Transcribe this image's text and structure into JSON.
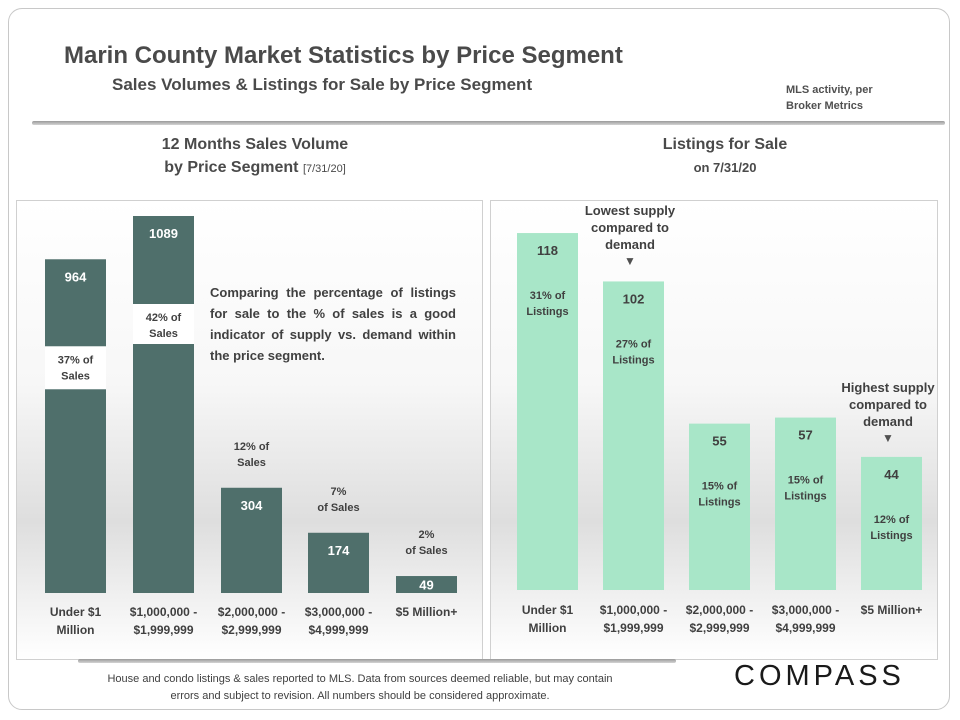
{
  "page": {
    "title": "Marin County Market Statistics by Price Segment",
    "subtitle": "Sales Volumes & Listings for Sale by Price Segment",
    "source": "MLS activity, per Broker Metrics",
    "footer": "House and condo listings & sales reported to MLS. Data from sources deemed reliable, but may contain errors and subject to revision. All numbers should be considered approximate.",
    "logo": "COMPASS"
  },
  "sales_header": {
    "line1": "12 Months Sales Volume",
    "line2": "by Price Segment",
    "date": "[7/31/20]"
  },
  "listings_header": {
    "line1": "Listings for Sale",
    "line2": "on 7/31/20"
  },
  "annotations": {
    "note": "Comparing the percentage of listings for sale to the % of sales is a good indicator of supply vs. demand within the price segment.",
    "lowest_supply": [
      "Lowest supply",
      "compared to",
      "demand"
    ],
    "highest_supply": [
      "Highest supply",
      "compared to",
      "demand"
    ],
    "arrow_glyph": "▼"
  },
  "colors": {
    "sales_bar": "#4f6f6b",
    "listings_bar": "#a8e6c8",
    "pct_box": "#ffffff"
  },
  "chart_data": [
    {
      "type": "bar",
      "title": "12 Months Sales Volume by Price Segment [7/31/20]",
      "categories": [
        [
          "Under $1",
          "Million"
        ],
        [
          "$1,000,000 -",
          "$1,999,999"
        ],
        [
          "$2,000,000 -",
          "$2,999,999"
        ],
        [
          "$3,000,000 -",
          "$4,999,999"
        ],
        [
          "$5 Million+"
        ]
      ],
      "values": [
        964,
        1089,
        304,
        174,
        49
      ],
      "pct_labels": [
        [
          "37% of",
          "Sales"
        ],
        [
          "42% of",
          "Sales"
        ],
        [
          "12% of",
          "Sales"
        ],
        [
          "7%",
          "of Sales"
        ],
        [
          "2%",
          "of Sales"
        ]
      ],
      "pct_position": [
        "inside",
        "inside",
        "above",
        "above",
        "above"
      ],
      "ylim": [
        0,
        1089
      ],
      "grid": false,
      "legend": "none"
    },
    {
      "type": "bar",
      "title": "Listings for Sale on 7/31/20",
      "categories": [
        [
          "Under $1",
          "Million"
        ],
        [
          "$1,000,000 -",
          "$1,999,999"
        ],
        [
          "$2,000,000 -",
          "$2,999,999"
        ],
        [
          "$3,000,000 -",
          "$4,999,999"
        ],
        [
          "$5 Million+"
        ]
      ],
      "values": [
        118,
        102,
        55,
        57,
        44
      ],
      "pct_labels": [
        [
          "31% of",
          "Listings"
        ],
        [
          "27% of",
          "Listings"
        ],
        [
          "15% of",
          "Listings"
        ],
        [
          "15% of",
          "Listings"
        ],
        [
          "12% of",
          "Listings"
        ]
      ],
      "ylim": [
        0,
        120
      ],
      "grid": false,
      "legend": "none"
    }
  ]
}
